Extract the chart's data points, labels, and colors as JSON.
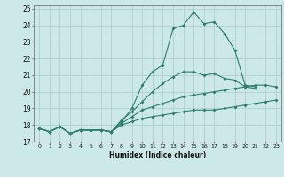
{
  "xlabel": "Humidex (Indice chaleur)",
  "bg_color": "#cce8e8",
  "grid_color": "#aacccc",
  "line_color": "#2e7d6e",
  "xlim": [
    -0.5,
    23.5
  ],
  "ylim": [
    17,
    25.2
  ],
  "xticks": [
    0,
    1,
    2,
    3,
    4,
    5,
    6,
    7,
    8,
    9,
    10,
    11,
    12,
    13,
    14,
    15,
    16,
    17,
    18,
    19,
    20,
    21,
    22,
    23
  ],
  "yticks": [
    17,
    18,
    19,
    20,
    21,
    22,
    23,
    24,
    25
  ],
  "lines": [
    {
      "x": [
        0,
        1,
        2,
        3,
        4,
        5,
        6,
        7,
        8,
        9,
        10,
        11,
        12,
        13,
        14,
        15,
        16,
        17,
        18,
        19,
        20,
        21
      ],
      "y": [
        17.8,
        17.6,
        17.9,
        17.5,
        17.7,
        17.7,
        17.7,
        17.6,
        18.2,
        19.0,
        20.4,
        21.2,
        21.6,
        23.8,
        24.0,
        24.8,
        24.1,
        24.2,
        23.5,
        22.5,
        20.4,
        20.3
      ]
    },
    {
      "x": [
        0,
        1,
        2,
        3,
        4,
        5,
        6,
        7,
        8,
        9,
        10,
        11,
        12,
        13,
        14,
        15,
        16,
        17,
        18,
        19,
        20,
        21
      ],
      "y": [
        17.8,
        17.6,
        17.9,
        17.5,
        17.7,
        17.7,
        17.7,
        17.6,
        18.3,
        18.8,
        19.4,
        20.0,
        20.5,
        20.9,
        21.2,
        21.2,
        21.0,
        21.1,
        20.8,
        20.7,
        20.3,
        20.2
      ]
    },
    {
      "x": [
        0,
        1,
        2,
        3,
        4,
        5,
        6,
        7,
        8,
        9,
        10,
        11,
        12,
        13,
        14,
        15,
        16,
        17,
        18,
        19,
        20,
        21,
        22,
        23
      ],
      "y": [
        17.8,
        17.6,
        17.9,
        17.5,
        17.7,
        17.7,
        17.7,
        17.6,
        18.1,
        18.5,
        18.9,
        19.1,
        19.3,
        19.5,
        19.7,
        19.8,
        19.9,
        20.0,
        20.1,
        20.2,
        20.3,
        20.4,
        20.4,
        20.3
      ]
    },
    {
      "x": [
        0,
        1,
        2,
        3,
        4,
        5,
        6,
        7,
        8,
        9,
        10,
        11,
        12,
        13,
        14,
        15,
        16,
        17,
        18,
        19,
        20,
        21,
        22,
        23
      ],
      "y": [
        17.8,
        17.6,
        17.9,
        17.5,
        17.7,
        17.7,
        17.7,
        17.6,
        18.0,
        18.2,
        18.4,
        18.5,
        18.6,
        18.7,
        18.8,
        18.9,
        18.9,
        18.9,
        19.0,
        19.1,
        19.2,
        19.3,
        19.4,
        19.5
      ]
    }
  ]
}
